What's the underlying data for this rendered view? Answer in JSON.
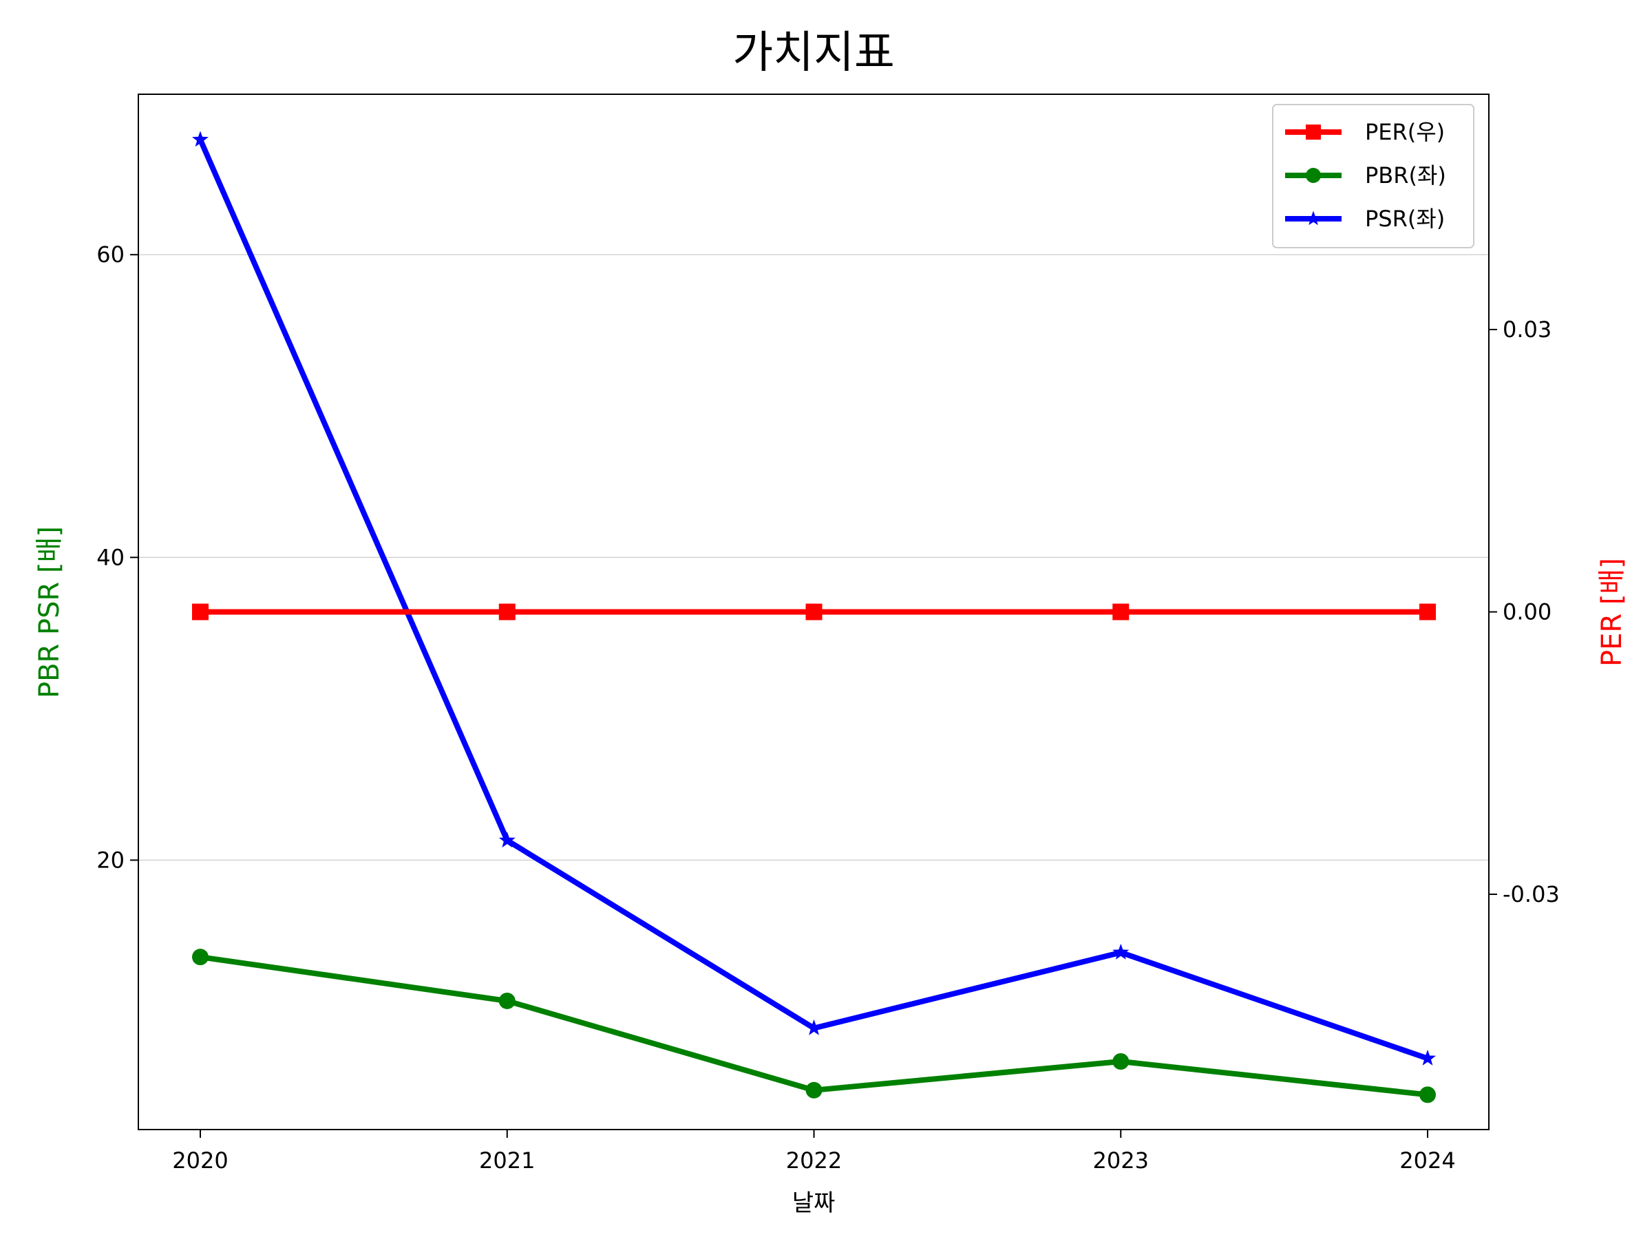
{
  "chart_data": {
    "type": "line",
    "title": "가치지표",
    "xlabel": "날짜",
    "ylabel_left": "PBR PSR [배]",
    "ylabel_right": "PER [배]",
    "categories": [
      "2020",
      "2021",
      "2022",
      "2023",
      "2024"
    ],
    "left_axis": {
      "ylim": [
        2.2,
        70.6
      ],
      "ticks": [
        20,
        40,
        60
      ],
      "tick_labels": [
        "20",
        "40",
        "60"
      ],
      "grid": true
    },
    "right_axis": {
      "ylim": [
        -0.055,
        0.055
      ],
      "ticks": [
        -0.03,
        0.0,
        0.03
      ],
      "tick_labels": [
        "-0.03",
        "0.00",
        "0.03"
      ]
    },
    "series": [
      {
        "name": "PER(우)",
        "axis": "right",
        "color": "#ff0000",
        "marker": "square",
        "values": [
          0,
          0,
          0,
          0,
          0
        ]
      },
      {
        "name": "PBR(좌)",
        "axis": "left",
        "color": "#008000",
        "marker": "circle",
        "values": [
          13.6,
          10.7,
          4.8,
          6.7,
          4.5
        ]
      },
      {
        "name": "PSR(좌)",
        "axis": "left",
        "color": "#0000ff",
        "marker": "star",
        "values": [
          67.6,
          21.3,
          8.9,
          13.9,
          6.9
        ]
      }
    ],
    "legend_position": "top-right",
    "colors": {
      "left_axis_label": "#008000",
      "right_axis_label": "#ff0000",
      "grid": "#d3d3d3"
    }
  }
}
